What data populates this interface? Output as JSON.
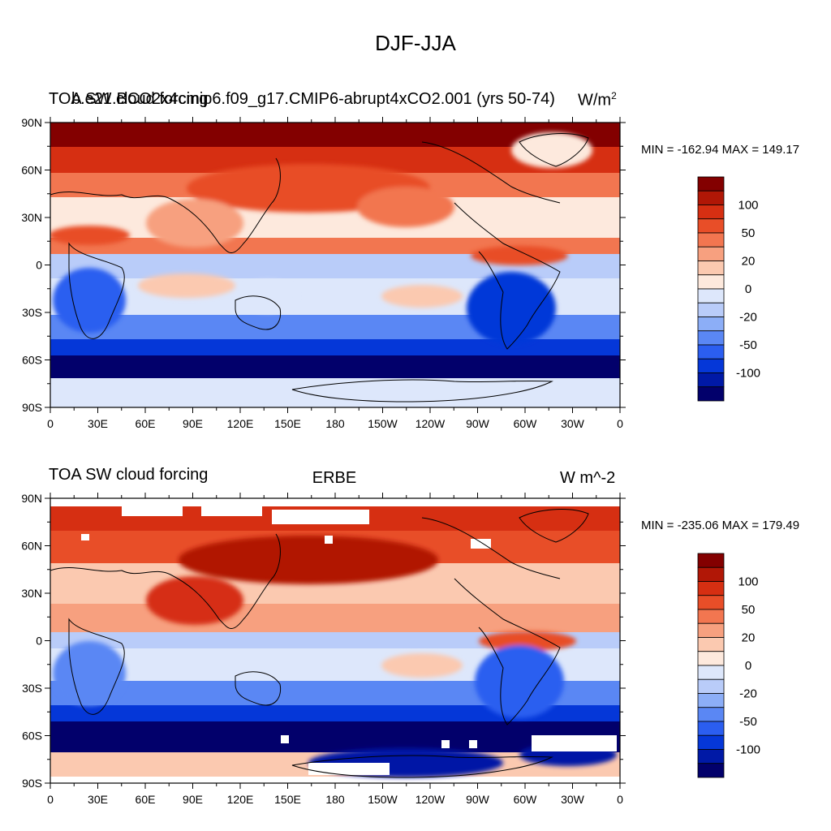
{
  "title": "DJF-JJA",
  "colorbar": {
    "levels": [
      -150,
      -120,
      -100,
      -80,
      -50,
      -30,
      -20,
      -10,
      0,
      10,
      20,
      30,
      50,
      80,
      100,
      120,
      150
    ],
    "tick_labels": [
      "100",
      "50",
      "20",
      "0",
      "-20",
      "-50",
      "-100"
    ],
    "tick_values": [
      100,
      50,
      20,
      0,
      -20,
      -50,
      -100
    ],
    "colors": [
      "#02006b",
      "#0019a6",
      "#0537d8",
      "#2b5ef0",
      "#5a87f4",
      "#8caef7",
      "#b9ccf9",
      "#dde7fb",
      "#fde9dd",
      "#fbc9b0",
      "#f7a07f",
      "#f27650",
      "#e84e28",
      "#d62f12",
      "#b11706",
      "#830000"
    ]
  },
  "chart_data": [
    {
      "type": "heatmap",
      "panel_title_left": "TOA SW cloud forcing",
      "panel_title_overlay": "b.e21.BCO2x4cmip6.f09_g17.CMIP6-abrupt4xCO2.001 (yrs 50-74)",
      "units_main": "W/m",
      "units_sup": "2",
      "min_label": "MIN = -162.94",
      "max_label": "MAX = 149.17",
      "min": -162.94,
      "max": 149.17,
      "x_tick_labels": [
        "0",
        "30E",
        "60E",
        "90E",
        "120E",
        "150E",
        "180",
        "150W",
        "120W",
        "90W",
        "60W",
        "30W",
        "0"
      ],
      "y_tick_labels": [
        "90N",
        "60N",
        "30N",
        "0",
        "30S",
        "60S",
        "90S"
      ],
      "xlim": [
        0,
        360
      ],
      "ylim": [
        -90,
        90
      ]
    },
    {
      "type": "heatmap",
      "panel_title_left": "TOA SW cloud forcing",
      "panel_title_center": "ERBE",
      "units_main": "W m^-2",
      "min_label": "MIN = -235.06",
      "max_label": "MAX = 179.49",
      "min": -235.06,
      "max": 179.49,
      "x_tick_labels": [
        "0",
        "30E",
        "60E",
        "90E",
        "120E",
        "150E",
        "180",
        "150W",
        "120W",
        "90W",
        "60W",
        "30W",
        "0"
      ],
      "y_tick_labels": [
        "90N",
        "60N",
        "30N",
        "0",
        "30S",
        "60S",
        "90S"
      ],
      "xlim": [
        0,
        360
      ],
      "ylim": [
        -90,
        90
      ]
    }
  ]
}
